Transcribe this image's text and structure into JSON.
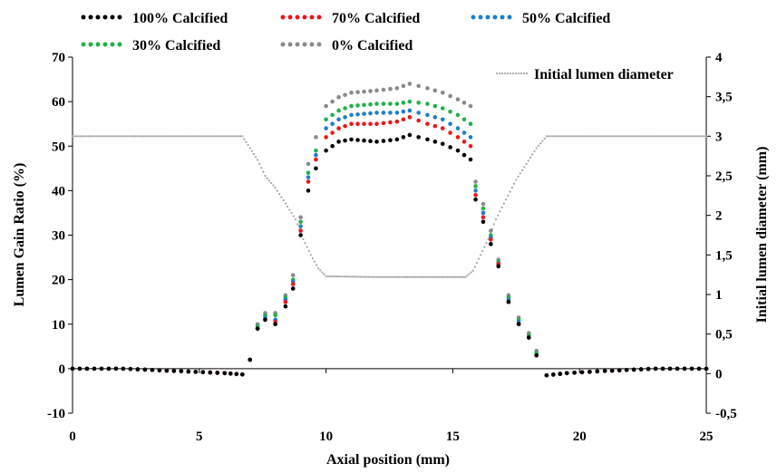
{
  "chart_data": {
    "type": "scatter",
    "xlabel": "Axial position (mm)",
    "ylabel": "Lumen Gain  Ratio (%)",
    "y2label": "Initial lumen diameter (mm)",
    "xlim": [
      0,
      25
    ],
    "ylim": [
      -10,
      70
    ],
    "y2lim": [
      -0.5,
      4
    ],
    "x_ticks": [
      "0",
      "5",
      "10",
      "15",
      "20",
      "25"
    ],
    "y_ticks": [
      "-10",
      "0",
      "10",
      "20",
      "30",
      "40",
      "50",
      "60",
      "70"
    ],
    "y2_ticks": [
      "-0,5",
      "0",
      "0,5",
      "1",
      "1,5",
      "2",
      "2,5",
      "3",
      "3,5",
      "4"
    ],
    "grid": false,
    "legend_position": "top",
    "series": [
      {
        "name": "100% Calcified",
        "color": "#000000",
        "axis": "left",
        "points": [
          [
            0,
            0
          ],
          [
            2,
            0
          ],
          [
            4,
            -0.5
          ],
          [
            6,
            -1
          ],
          [
            6.7,
            -1.3
          ],
          [
            7,
            2
          ],
          [
            7.3,
            9
          ],
          [
            7.6,
            11
          ],
          [
            8,
            10
          ],
          [
            8.4,
            14
          ],
          [
            8.7,
            18
          ],
          [
            9,
            30
          ],
          [
            9.3,
            40
          ],
          [
            9.6,
            45
          ],
          [
            10,
            49
          ],
          [
            10.5,
            51
          ],
          [
            11,
            51.5
          ],
          [
            12,
            51
          ],
          [
            12.8,
            51.5
          ],
          [
            13.3,
            52.5
          ],
          [
            14,
            51.5
          ],
          [
            14.6,
            50.5
          ],
          [
            15.2,
            49
          ],
          [
            15.7,
            47
          ],
          [
            15.9,
            38
          ],
          [
            16.2,
            33
          ],
          [
            16.5,
            28
          ],
          [
            16.8,
            23
          ],
          [
            17.2,
            15
          ],
          [
            17.6,
            10
          ],
          [
            18,
            7
          ],
          [
            18.3,
            3
          ],
          [
            18.7,
            -1.5
          ],
          [
            19.5,
            -1
          ],
          [
            21,
            -0.5
          ],
          [
            23,
            0
          ],
          [
            25,
            0
          ]
        ]
      },
      {
        "name": "70% Calcified",
        "color": "#e8191b",
        "axis": "left",
        "points": [
          [
            0,
            0
          ],
          [
            2,
            0
          ],
          [
            4,
            -0.5
          ],
          [
            6,
            -1
          ],
          [
            6.7,
            -1.3
          ],
          [
            7,
            2
          ],
          [
            7.3,
            9
          ],
          [
            7.6,
            11
          ],
          [
            8,
            10.5
          ],
          [
            8.4,
            15
          ],
          [
            8.7,
            19
          ],
          [
            9,
            31
          ],
          [
            9.3,
            42
          ],
          [
            9.6,
            47
          ],
          [
            10,
            52
          ],
          [
            10.5,
            54
          ],
          [
            11,
            55
          ],
          [
            12,
            55
          ],
          [
            12.8,
            55.5
          ],
          [
            13.3,
            56.5
          ],
          [
            14,
            55
          ],
          [
            14.6,
            54
          ],
          [
            15.2,
            52
          ],
          [
            15.7,
            50
          ],
          [
            15.9,
            39
          ],
          [
            16.2,
            34
          ],
          [
            16.5,
            29
          ],
          [
            16.8,
            23.5
          ],
          [
            17.2,
            15
          ],
          [
            17.6,
            10
          ],
          [
            18,
            7
          ],
          [
            18.3,
            3
          ],
          [
            18.7,
            -1.5
          ],
          [
            19.5,
            -1
          ],
          [
            21,
            -0.5
          ],
          [
            23,
            0
          ],
          [
            25,
            0
          ]
        ]
      },
      {
        "name": "50% Calcified",
        "color": "#1f7ec8",
        "axis": "left",
        "points": [
          [
            0,
            0
          ],
          [
            2,
            0
          ],
          [
            4,
            -0.5
          ],
          [
            6,
            -1
          ],
          [
            6.7,
            -1.3
          ],
          [
            7,
            2
          ],
          [
            7.3,
            9
          ],
          [
            7.6,
            11.5
          ],
          [
            8,
            11
          ],
          [
            8.4,
            15.5
          ],
          [
            8.7,
            19.5
          ],
          [
            9,
            32
          ],
          [
            9.3,
            43
          ],
          [
            9.6,
            48
          ],
          [
            10,
            54
          ],
          [
            10.5,
            56
          ],
          [
            11,
            57
          ],
          [
            12,
            57.5
          ],
          [
            12.8,
            57.5
          ],
          [
            13.3,
            58
          ],
          [
            14,
            57
          ],
          [
            14.6,
            56
          ],
          [
            15.2,
            54
          ],
          [
            15.7,
            52
          ],
          [
            15.9,
            40
          ],
          [
            16.2,
            35
          ],
          [
            16.5,
            29.5
          ],
          [
            16.8,
            23.5
          ],
          [
            17.2,
            15.5
          ],
          [
            17.6,
            10.5
          ],
          [
            18,
            7
          ],
          [
            18.3,
            3
          ],
          [
            18.7,
            -1.5
          ],
          [
            19.5,
            -1
          ],
          [
            21,
            -0.5
          ],
          [
            23,
            0
          ],
          [
            25,
            0
          ]
        ]
      },
      {
        "name": "30% Calcified",
        "color": "#22b04a",
        "axis": "left",
        "points": [
          [
            0,
            0
          ],
          [
            2,
            0
          ],
          [
            4,
            -0.5
          ],
          [
            6,
            -1
          ],
          [
            6.7,
            -1.3
          ],
          [
            7,
            2
          ],
          [
            7.3,
            9.5
          ],
          [
            7.6,
            12
          ],
          [
            8,
            12
          ],
          [
            8.4,
            16
          ],
          [
            8.7,
            20
          ],
          [
            9,
            33
          ],
          [
            9.3,
            44
          ],
          [
            9.6,
            49
          ],
          [
            10,
            56
          ],
          [
            10.5,
            58
          ],
          [
            11,
            59
          ],
          [
            12,
            59.5
          ],
          [
            12.8,
            59.5
          ],
          [
            13.3,
            60
          ],
          [
            14,
            59.5
          ],
          [
            14.6,
            58.5
          ],
          [
            15.2,
            57
          ],
          [
            15.7,
            55
          ],
          [
            15.9,
            41
          ],
          [
            16.2,
            36
          ],
          [
            16.5,
            30
          ],
          [
            16.8,
            24
          ],
          [
            17.2,
            16
          ],
          [
            17.6,
            11
          ],
          [
            18,
            7.5
          ],
          [
            18.3,
            3.5
          ],
          [
            18.7,
            -1.5
          ],
          [
            19.5,
            -1
          ],
          [
            21,
            -0.5
          ],
          [
            23,
            0
          ],
          [
            25,
            0
          ]
        ]
      },
      {
        "name": "0% Calcified",
        "color": "#8a8a8a",
        "axis": "left",
        "points": [
          [
            0,
            0
          ],
          [
            2,
            0
          ],
          [
            4,
            -0.5
          ],
          [
            6,
            -1
          ],
          [
            6.7,
            -1.3
          ],
          [
            7,
            2
          ],
          [
            7.3,
            10
          ],
          [
            7.6,
            12.5
          ],
          [
            8,
            12.5
          ],
          [
            8.4,
            16.5
          ],
          [
            8.7,
            21
          ],
          [
            9,
            34
          ],
          [
            9.3,
            46
          ],
          [
            9.6,
            52
          ],
          [
            10,
            59
          ],
          [
            10.5,
            61
          ],
          [
            11,
            62
          ],
          [
            12,
            62.5
          ],
          [
            12.8,
            63
          ],
          [
            13.3,
            64
          ],
          [
            14,
            63
          ],
          [
            14.6,
            62
          ],
          [
            15.2,
            60.5
          ],
          [
            15.7,
            59
          ],
          [
            15.9,
            42
          ],
          [
            16.2,
            37
          ],
          [
            16.5,
            31
          ],
          [
            16.8,
            24.5
          ],
          [
            17.2,
            16.5
          ],
          [
            17.6,
            11.5
          ],
          [
            18,
            8
          ],
          [
            18.3,
            4
          ],
          [
            18.7,
            -1.5
          ],
          [
            19.5,
            -1
          ],
          [
            21,
            -0.5
          ],
          [
            23,
            0
          ],
          [
            25,
            0
          ]
        ]
      },
      {
        "name": "Initial lumen diameter",
        "color": "#a6a6a6",
        "axis": "right",
        "points": [
          [
            0,
            3
          ],
          [
            6.7,
            3
          ],
          [
            7.0,
            2.85
          ],
          [
            7.3,
            2.7
          ],
          [
            7.6,
            2.5
          ],
          [
            8.0,
            2.35
          ],
          [
            8.4,
            2.15
          ],
          [
            8.8,
            1.95
          ],
          [
            9.1,
            1.7
          ],
          [
            9.4,
            1.5
          ],
          [
            9.7,
            1.33
          ],
          [
            10.0,
            1.23
          ],
          [
            12,
            1.22
          ],
          [
            14,
            1.22
          ],
          [
            15.5,
            1.22
          ],
          [
            15.8,
            1.3
          ],
          [
            16.1,
            1.5
          ],
          [
            16.4,
            1.7
          ],
          [
            16.7,
            1.95
          ],
          [
            17.1,
            2.2
          ],
          [
            17.5,
            2.45
          ],
          [
            17.9,
            2.65
          ],
          [
            18.3,
            2.85
          ],
          [
            18.7,
            3
          ],
          [
            25,
            3
          ]
        ]
      }
    ]
  }
}
